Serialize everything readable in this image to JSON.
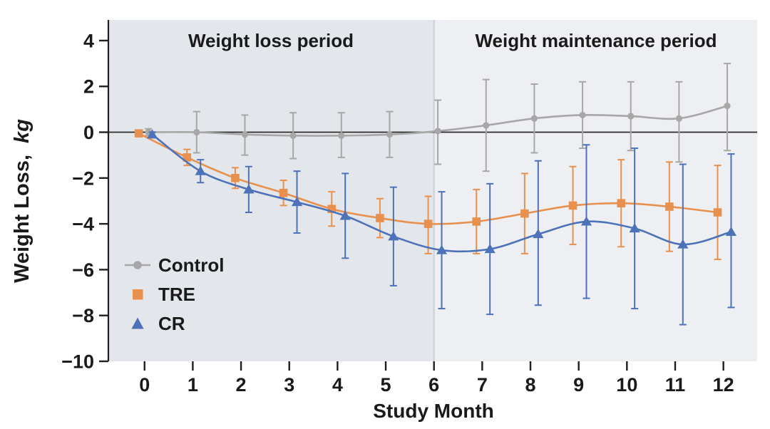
{
  "chart_data": {
    "type": "line",
    "title": "",
    "xlabel": "Study Month",
    "ylabel": "Weight Loss, kg",
    "ylabel_prefix": "Weight Loss,",
    "ylabel_italic": "kg",
    "x": [
      0,
      1,
      2,
      3,
      4,
      5,
      6,
      7,
      8,
      9,
      10,
      11,
      12
    ],
    "x_tick_labels": [
      "0",
      "1",
      "2",
      "3",
      "4",
      "5",
      "6",
      "7",
      "8",
      "9",
      "10",
      "11",
      "12"
    ],
    "xlim": [
      -0.75,
      12.7
    ],
    "ylim": [
      -10,
      4.9
    ],
    "y_ticks": [
      4,
      2,
      0,
      -2,
      -4,
      -6,
      -8,
      -10
    ],
    "y_tick_labels": [
      "4",
      "2",
      "0",
      "−2",
      "−4",
      "−6",
      "−8",
      "−10"
    ],
    "grid": false,
    "legend_position": "lower-left",
    "zero_line": 0,
    "divider_color": "#cbd0d7",
    "axis_color": "#1f1f1f",
    "regions": [
      {
        "label": "Weight loss period",
        "from": -0.75,
        "to": 6,
        "fill": "#e3e6ea"
      },
      {
        "label": "Weight maintenance period",
        "from": 6,
        "to": 12.7,
        "fill": "#edeff2"
      }
    ],
    "series": [
      {
        "name": "Control",
        "color": "#a7a7a7",
        "marker": "circle",
        "x_offset": 0.08,
        "values": [
          0,
          0,
          -0.1,
          -0.15,
          -0.15,
          -0.1,
          0.05,
          0.3,
          0.6,
          0.75,
          0.7,
          0.6,
          1.15
        ],
        "err_up": [
          0.15,
          0.9,
          0.85,
          1.0,
          1.0,
          1.0,
          1.35,
          2.0,
          1.5,
          1.45,
          1.5,
          1.6,
          1.85
        ],
        "err_down": [
          0.15,
          0.9,
          0.9,
          1.0,
          0.95,
          1.0,
          1.45,
          2.0,
          1.5,
          1.45,
          1.5,
          1.9,
          1.95
        ]
      },
      {
        "name": "TRE",
        "color": "#e8914f",
        "marker": "square",
        "x_offset": -0.12,
        "values": [
          -0.05,
          -1.1,
          -2.0,
          -2.65,
          -3.35,
          -3.75,
          -4.0,
          -3.9,
          -3.55,
          -3.2,
          -3.1,
          -3.25,
          -3.5
        ],
        "err_up": [
          0.1,
          0.35,
          0.45,
          0.55,
          0.75,
          0.85,
          1.2,
          1.4,
          1.75,
          1.7,
          1.9,
          1.95,
          2.05
        ],
        "err_down": [
          0.1,
          0.35,
          0.45,
          0.55,
          0.75,
          0.85,
          1.3,
          1.4,
          1.75,
          1.7,
          1.9,
          1.95,
          2.05
        ]
      },
      {
        "name": "CR",
        "color": "#4d72b8",
        "marker": "triangle",
        "x_offset": 0.16,
        "values": [
          -0.1,
          -1.7,
          -2.5,
          -3.05,
          -3.65,
          -4.55,
          -5.15,
          -5.1,
          -4.45,
          -3.9,
          -4.2,
          -4.9,
          -4.35
        ],
        "err_up": [
          0.1,
          0.5,
          1.0,
          1.35,
          1.85,
          2.15,
          2.55,
          2.85,
          3.2,
          3.35,
          3.5,
          3.5,
          3.4
        ],
        "err_down": [
          0.1,
          0.5,
          1.0,
          1.35,
          1.85,
          2.15,
          2.55,
          2.85,
          3.1,
          3.35,
          3.5,
          3.5,
          3.3
        ]
      }
    ]
  }
}
